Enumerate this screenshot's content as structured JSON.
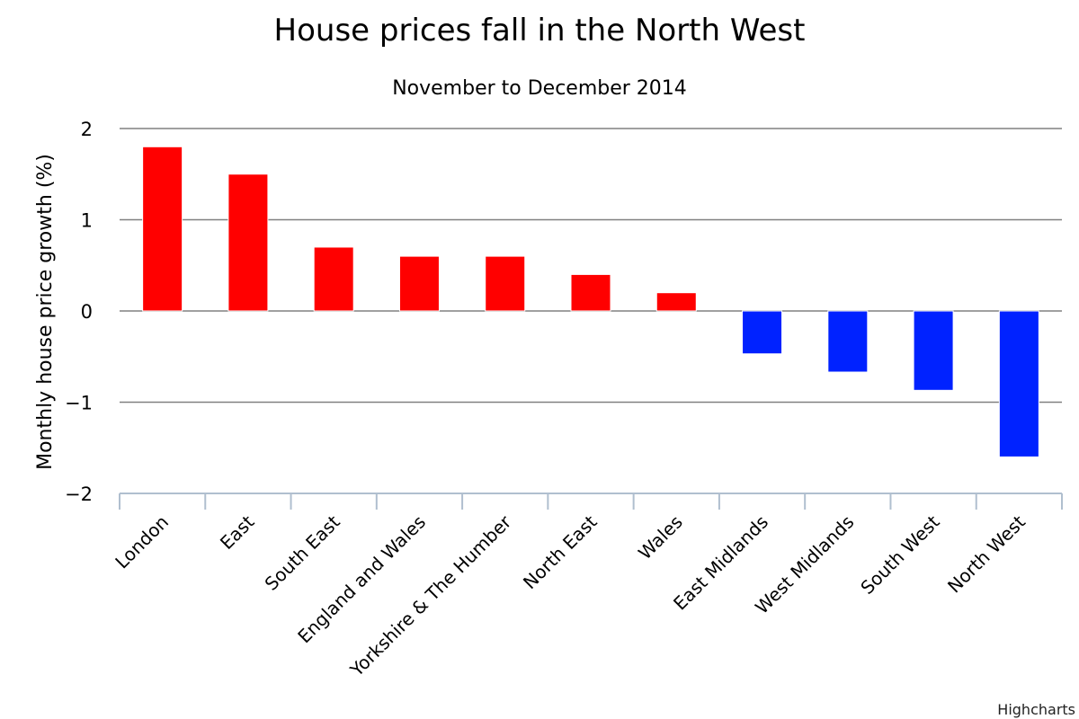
{
  "chart_data": {
    "type": "bar",
    "title": "House prices fall in the North West",
    "subtitle": "November to December 2014",
    "ylabel": "Monthly house price growth (%)",
    "xlabel": "",
    "ylim": [
      -2,
      2
    ],
    "yticks": [
      2,
      1,
      0,
      -1,
      -2
    ],
    "ytick_labels": [
      "2",
      "1",
      "0",
      "−1",
      "−2"
    ],
    "grid": true,
    "legend": "none",
    "categories": [
      "London",
      "East",
      "South East",
      "England and Wales",
      "Yorkshire & The Humber",
      "North East",
      "Wales",
      "East Midlands",
      "West Midlands",
      "South West",
      "North West"
    ],
    "values": [
      1.8,
      1.5,
      0.7,
      0.6,
      0.6,
      0.4,
      0.2,
      -0.47,
      -0.67,
      -0.87,
      -1.6
    ],
    "colors": {
      "positive": "#ff0000",
      "negative": "#0022ff",
      "grid": "#808080",
      "axis": "#b0bfcf"
    }
  },
  "credit": "Highcharts"
}
